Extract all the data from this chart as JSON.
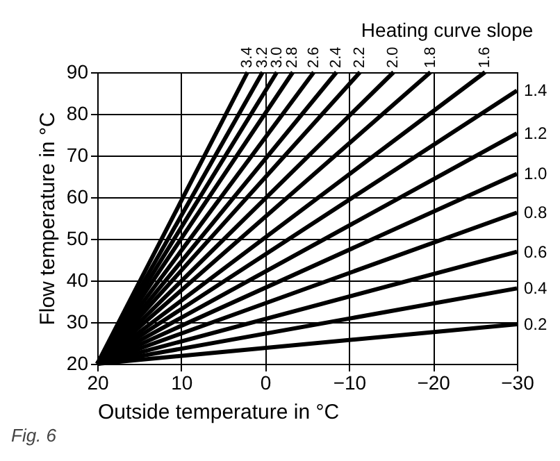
{
  "chart_data": {
    "type": "line",
    "title": "Heating curve slope",
    "xlabel": "Outside temperature in °C",
    "ylabel": "Flow temperature in °C",
    "xlim": [
      20,
      -30
    ],
    "xticks": [
      20,
      10,
      0,
      -10,
      -20,
      -30
    ],
    "ylim": [
      20,
      90
    ],
    "yticks": [
      20,
      30,
      40,
      50,
      60,
      70,
      80,
      90
    ],
    "grid": true,
    "legend": false,
    "marker": "none",
    "line_style": "solid",
    "annotations": [
      "Fig. 6"
    ],
    "series": [
      {
        "name": "3.4",
        "color": "#000000",
        "x": [
          20,
          2.1
        ],
        "values": [
          20,
          90
        ]
      },
      {
        "name": "3.2",
        "color": "#000000",
        "x": [
          20,
          0.3
        ],
        "values": [
          20,
          90
        ]
      },
      {
        "name": "3.0",
        "color": "#000000",
        "x": [
          20,
          -1.4
        ],
        "values": [
          20,
          90
        ]
      },
      {
        "name": "2.8",
        "color": "#000000",
        "x": [
          20,
          -3.3
        ],
        "values": [
          20,
          90
        ]
      },
      {
        "name": "2.6",
        "color": "#000000",
        "x": [
          20,
          -5.8
        ],
        "values": [
          20,
          90
        ]
      },
      {
        "name": "2.4",
        "color": "#000000",
        "x": [
          20,
          -8.5
        ],
        "values": [
          20,
          90
        ]
      },
      {
        "name": "2.2",
        "color": "#000000",
        "x": [
          20,
          -11.3
        ],
        "values": [
          20,
          90
        ]
      },
      {
        "name": "2.0",
        "color": "#000000",
        "x": [
          20,
          -15.3
        ],
        "values": [
          20,
          90
        ]
      },
      {
        "name": "1.8",
        "color": "#000000",
        "x": [
          20,
          -19.7
        ],
        "values": [
          20,
          90
        ]
      },
      {
        "name": "1.6",
        "color": "#000000",
        "x": [
          20,
          -26.2
        ],
        "values": [
          20,
          90
        ]
      },
      {
        "name": "1.4",
        "color": "#000000",
        "x": [
          20,
          -30
        ],
        "values": [
          20,
          85.6
        ]
      },
      {
        "name": "1.2",
        "color": "#000000",
        "x": [
          20,
          -30
        ],
        "values": [
          20,
          75.3
        ]
      },
      {
        "name": "1.0",
        "color": "#000000",
        "x": [
          20,
          -30
        ],
        "values": [
          20,
          65.6
        ]
      },
      {
        "name": "0.8",
        "color": "#000000",
        "x": [
          20,
          -30
        ],
        "values": [
          20,
          56.3
        ]
      },
      {
        "name": "0.6",
        "color": "#000000",
        "x": [
          20,
          -30
        ],
        "values": [
          20,
          46.9
        ]
      },
      {
        "name": "0.4",
        "color": "#000000",
        "x": [
          20,
          -30
        ],
        "values": [
          20,
          38.1
        ]
      },
      {
        "name": "0.2",
        "color": "#000000",
        "x": [
          20,
          -30
        ],
        "values": [
          20,
          29.5
        ]
      }
    ]
  }
}
